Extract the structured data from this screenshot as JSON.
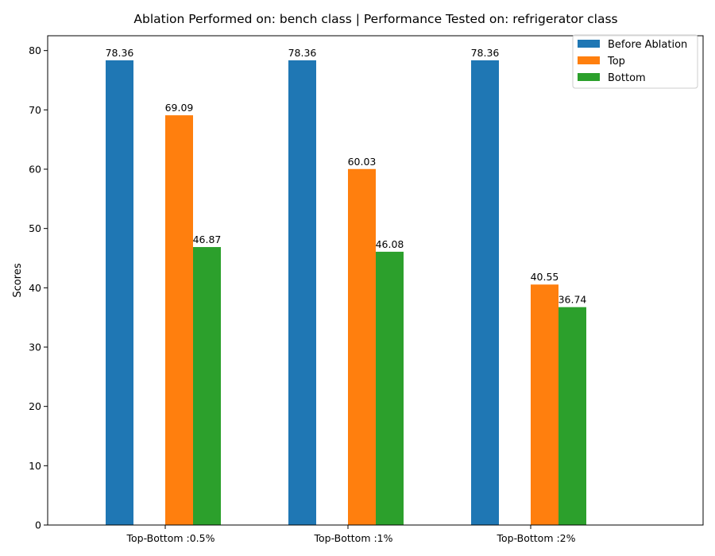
{
  "chart_data": {
    "type": "bar",
    "title": "Ablation Performed on: bench class | Performance Tested on: refrigerator class",
    "xlabel": "",
    "ylabel": "Scores",
    "ylim": [
      0,
      82.5
    ],
    "yticks": [
      0,
      10,
      20,
      30,
      40,
      50,
      60,
      70,
      80
    ],
    "categories": [
      "Top-Bottom :0.5%",
      "Top-Bottom :1%",
      "Top-Bottom :2%"
    ],
    "series": [
      {
        "name": "Before Ablation",
        "color": "#1f77b4",
        "values": [
          78.36,
          78.36,
          78.36
        ],
        "labels": [
          "78.36",
          "78.36",
          "78.36"
        ]
      },
      {
        "name": "Top",
        "color": "#ff7f0e",
        "values": [
          69.09,
          60.03,
          40.55
        ],
        "labels": [
          "69.09",
          "60.03",
          "40.55"
        ]
      },
      {
        "name": "Bottom",
        "color": "#2ca02c",
        "values": [
          46.87,
          46.08,
          36.74
        ],
        "labels": [
          "46.87",
          "46.08",
          "36.74"
        ]
      }
    ],
    "legend_position": "top-right",
    "grid": false
  }
}
